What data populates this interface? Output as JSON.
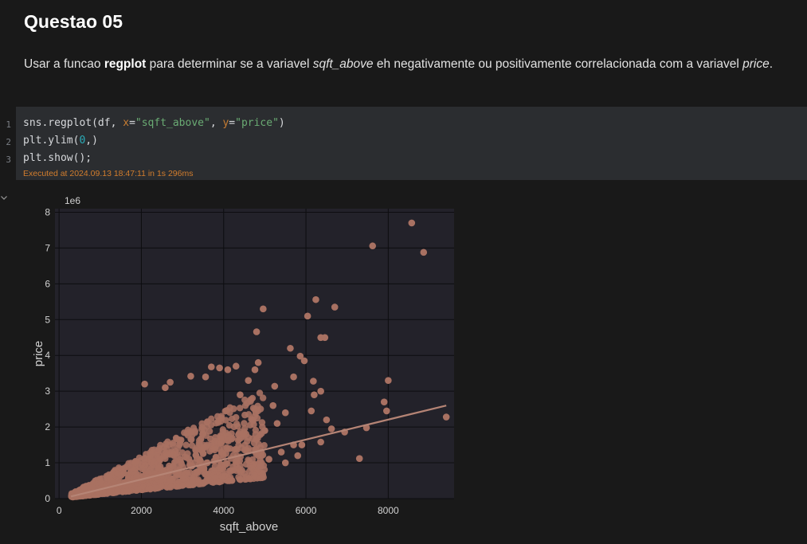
{
  "heading": "Questao 05",
  "paragraph": {
    "part1": "Usar a funcao ",
    "bold": "regplot",
    "part2": " para determinar se a variavel ",
    "italic1": "sqft_above",
    "part3": " eh negativamente ou positivamente correlacionada com a variavel ",
    "italic2": "price",
    "part4": "."
  },
  "code": {
    "line_numbers": [
      "1",
      "2",
      "3"
    ],
    "line1": {
      "a": "sns.regplot(df, ",
      "x_kw": "x",
      "eq1": "=",
      "x_val": "\"sqft_above\"",
      "comma": ", ",
      "y_kw": "y",
      "eq2": "=",
      "y_val": "\"price\"",
      "end": ")"
    },
    "line2": {
      "a": "plt.ylim(",
      "num": "0",
      "end": ",)"
    },
    "line3": "plt.show();",
    "execution": "Executed at 2024.09.13 18:47:11 in 1s 296ms"
  },
  "colors": {
    "background": "#191919",
    "code_bg": "#2b2d30",
    "plot_bg": "#23222a",
    "point": "#a87162",
    "exec_text": "#d27d2d"
  },
  "chart_data": {
    "type": "scatter",
    "xlabel": "sqft_above",
    "ylabel": "price",
    "offset_label": "1e6",
    "xlim": [
      -100,
      9600
    ],
    "ylim": [
      0,
      8.1
    ],
    "x_ticks": [
      0,
      2000,
      4000,
      6000,
      8000
    ],
    "x_tick_labels": [
      "0",
      "2000",
      "4000",
      "6000",
      "8000"
    ],
    "y_ticks": [
      0,
      1,
      2,
      3,
      4,
      5,
      6,
      7,
      8
    ],
    "y_tick_labels": [
      "0",
      "1",
      "2",
      "3",
      "4",
      "5",
      "6",
      "7",
      "8"
    ],
    "grid": true,
    "regression_line": {
      "x": [
        290,
        9410
      ],
      "y": [
        0.06,
        2.6
      ]
    },
    "points": [
      [
        8570,
        7.7
      ],
      [
        7620,
        7.06
      ],
      [
        8860,
        6.88
      ],
      [
        4960,
        5.3
      ],
      [
        6240,
        5.56
      ],
      [
        6700,
        5.35
      ],
      [
        6040,
        5.1
      ],
      [
        4800,
        4.66
      ],
      [
        6360,
        4.5
      ],
      [
        6460,
        4.5
      ],
      [
        5620,
        4.2
      ],
      [
        5860,
        3.98
      ],
      [
        5960,
        3.85
      ],
      [
        8000,
        3.3
      ],
      [
        5700,
        3.4
      ],
      [
        6180,
        3.28
      ],
      [
        5240,
        3.14
      ],
      [
        6360,
        3.0
      ],
      [
        6200,
        2.9
      ],
      [
        7900,
        2.7
      ],
      [
        6130,
        2.45
      ],
      [
        7960,
        2.45
      ],
      [
        9410,
        2.28
      ],
      [
        6500,
        2.2
      ],
      [
        7470,
        1.98
      ],
      [
        6620,
        1.95
      ],
      [
        7300,
        1.12
      ],
      [
        6940,
        1.86
      ],
      [
        6360,
        1.58
      ],
      [
        5900,
        1.5
      ],
      [
        4760,
        3.6
      ],
      [
        4840,
        3.8
      ],
      [
        4300,
        3.7
      ],
      [
        4100,
        3.6
      ],
      [
        3900,
        3.65
      ],
      [
        3700,
        3.68
      ],
      [
        3560,
        3.4
      ],
      [
        3200,
        3.42
      ],
      [
        2700,
        3.25
      ],
      [
        2080,
        3.2
      ],
      [
        2580,
        3.1
      ],
      [
        4600,
        3.3
      ],
      [
        4400,
        2.9
      ],
      [
        5200,
        2.6
      ],
      [
        5500,
        2.4
      ],
      [
        5300,
        2.1
      ],
      [
        5000,
        1.9
      ],
      [
        4700,
        2.2
      ],
      [
        5700,
        1.5
      ],
      [
        5400,
        1.3
      ],
      [
        5100,
        1.1
      ],
      [
        4900,
        0.9
      ],
      [
        5500,
        1.0
      ],
      [
        5800,
        1.2
      ]
    ],
    "dense_region": "many overlapping points between x ≈ 300–5000, y ≈ 0.05–3.2"
  }
}
